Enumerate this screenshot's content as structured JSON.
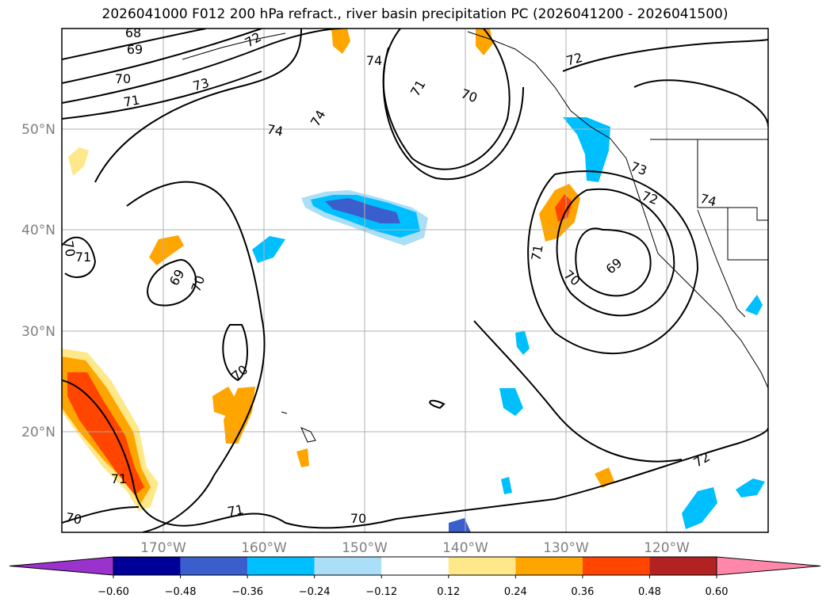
{
  "title": "2026041000 F012 200 hPa refract., river basin precipitation PC (2026041200 - 2026041500)",
  "lat_labels": [
    "50°N",
    "40°N",
    "30°N",
    "20°N"
  ],
  "lon_labels": [
    "170°W",
    "160°W",
    "150°W",
    "140°W",
    "130°W",
    "120°W"
  ],
  "colorbar": {
    "ticks": [
      "−0.60",
      "−0.48",
      "−0.36",
      "−0.24",
      "−0.12",
      "0.12",
      "0.24",
      "0.36",
      "0.48",
      "0.60"
    ],
    "colors": [
      "#9933cc",
      "#000099",
      "#3a5fcd",
      "#00bfff",
      "#aadff7",
      "#ffffff",
      "#ffe88a",
      "#ffa500",
      "#ff4500",
      "#b22222",
      "#ff88aa"
    ]
  },
  "contour_labels": [
    "68",
    "69",
    "70",
    "71",
    "72",
    "73",
    "74",
    "74",
    "74",
    "70",
    "71",
    "72",
    "73",
    "74",
    "71",
    "70",
    "69",
    "70",
    "69",
    "70",
    "71",
    "70",
    "71",
    "70",
    "72",
    "71",
    "70",
    "72"
  ]
}
